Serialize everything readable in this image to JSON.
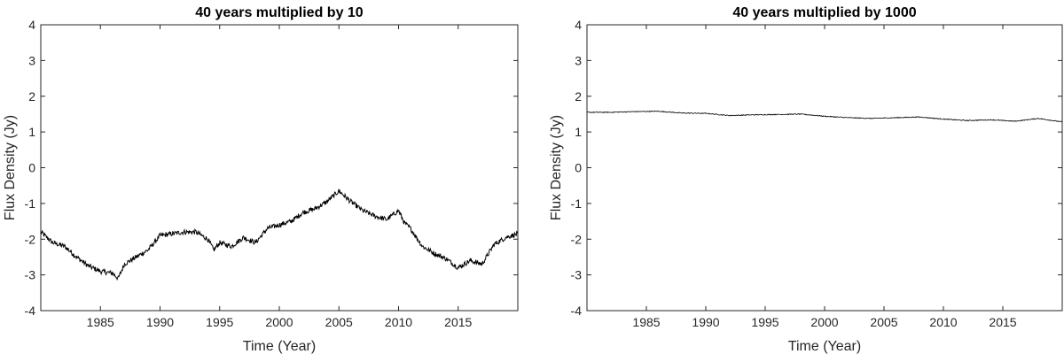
{
  "chart_data": [
    {
      "type": "line",
      "title": "40 years multiplied by 10",
      "xlabel": "Time (Year)",
      "ylabel": "Flux Density (Jy)",
      "xlim": [
        1980,
        2020
      ],
      "ylim": [
        -4,
        4
      ],
      "xticks": [
        "1985",
        "1990",
        "1995",
        "2000",
        "2005",
        "2010",
        "2015"
      ],
      "yticks": [
        "4",
        "3",
        "2",
        "1",
        "0",
        "-1",
        "-2",
        "-3",
        "-4"
      ],
      "grid": false,
      "line_color": "#000000",
      "series": [
        {
          "x": [
            1980.0,
            1981.0,
            1982.0,
            1983.0,
            1984.0,
            1985.0,
            1986.0,
            1986.5,
            1987.0,
            1988.0,
            1989.0,
            1990.0,
            1991.0,
            1992.0,
            1993.0,
            1994.0,
            1994.5,
            1995.0,
            1996.0,
            1997.0,
            1998.0,
            1999.0,
            2000.0,
            2001.0,
            2002.0,
            2003.0,
            2004.0,
            2005.0,
            2006.0,
            2007.0,
            2008.0,
            2009.0,
            2010.0,
            2010.5,
            2011.0,
            2012.0,
            2013.0,
            2014.0,
            2015.0,
            2016.0,
            2017.0,
            2018.0,
            2019.0,
            2020.0
          ],
          "y": [
            -1.8,
            -2.1,
            -2.2,
            -2.5,
            -2.75,
            -2.9,
            -2.95,
            -3.1,
            -2.7,
            -2.5,
            -2.3,
            -1.9,
            -1.85,
            -1.8,
            -1.8,
            -2.0,
            -2.3,
            -2.1,
            -2.2,
            -1.95,
            -2.1,
            -1.7,
            -1.6,
            -1.5,
            -1.25,
            -1.15,
            -0.95,
            -0.65,
            -0.95,
            -1.2,
            -1.35,
            -1.45,
            -1.2,
            -1.55,
            -1.7,
            -2.2,
            -2.4,
            -2.55,
            -2.8,
            -2.6,
            -2.7,
            -2.15,
            -1.95,
            -1.85
          ]
        }
      ]
    },
    {
      "type": "line",
      "title": "40 years multiplied by 1000",
      "xlabel": "Time (Year)",
      "ylabel": "Flux Density (Jy)",
      "xlim": [
        1980,
        2020
      ],
      "ylim": [
        -4,
        4
      ],
      "xticks": [
        "1985",
        "1990",
        "1995",
        "2000",
        "2005",
        "2010",
        "2015"
      ],
      "yticks": [
        "4",
        "3",
        "2",
        "1",
        "0",
        "-1",
        "-2",
        "-3",
        "-4"
      ],
      "grid": false,
      "line_color": "#000000",
      "series": [
        {
          "x": [
            1980.0,
            1982.0,
            1984.0,
            1986.0,
            1988.0,
            1990.0,
            1992.0,
            1994.0,
            1996.0,
            1998.0,
            2000.0,
            2002.0,
            2004.0,
            2006.0,
            2008.0,
            2010.0,
            2012.0,
            2014.0,
            2016.0,
            2018.0,
            2020.0
          ],
          "y": [
            1.55,
            1.55,
            1.57,
            1.58,
            1.53,
            1.52,
            1.46,
            1.48,
            1.49,
            1.5,
            1.44,
            1.4,
            1.38,
            1.4,
            1.42,
            1.36,
            1.32,
            1.34,
            1.3,
            1.38,
            1.28
          ]
        }
      ]
    }
  ]
}
